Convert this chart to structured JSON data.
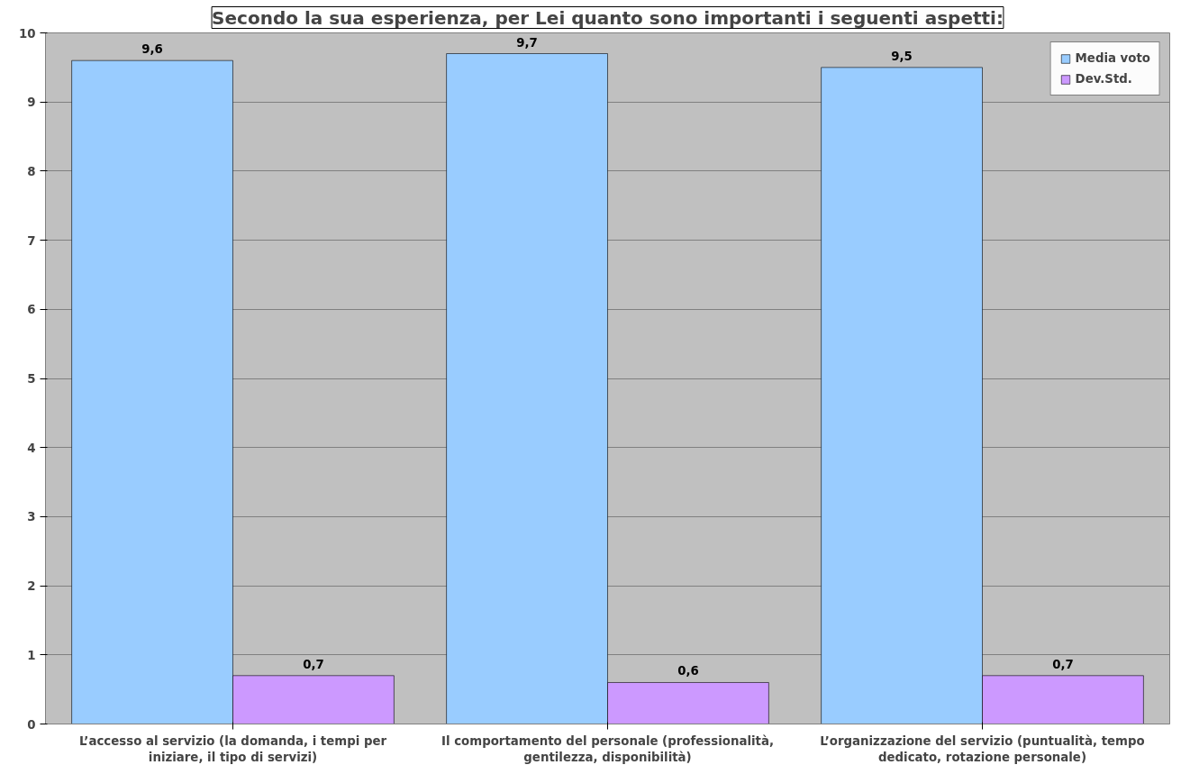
{
  "chart_data": {
    "type": "bar",
    "title": "Secondo la sua esperienza, per Lei quanto sono importanti i seguenti aspetti:",
    "categories": [
      "L’accesso al servizio (la domanda, i tempi per iniziare, il tipo di servizi)",
      "Il comportamento del personale (professionalità, gentilezza, disponibilità)",
      "L’organizzazione del servizio (puntualità, tempo dedicato, rotazione personale)"
    ],
    "series": [
      {
        "name": "Media voto",
        "color": "#99ccff",
        "values": [
          9.6,
          9.7,
          9.5
        ],
        "value_labels": [
          "9,6",
          "9,7",
          "9,5"
        ]
      },
      {
        "name": "Dev.Std.",
        "color": "#cc99ff",
        "values": [
          0.7,
          0.6,
          0.7
        ],
        "value_labels": [
          "0,7",
          "0,6",
          "0,7"
        ]
      }
    ],
    "ylim": [
      0,
      10
    ],
    "yticks": [
      0,
      1,
      2,
      3,
      4,
      5,
      6,
      7,
      8,
      9,
      10
    ],
    "grid": "y",
    "legend": "top right"
  }
}
